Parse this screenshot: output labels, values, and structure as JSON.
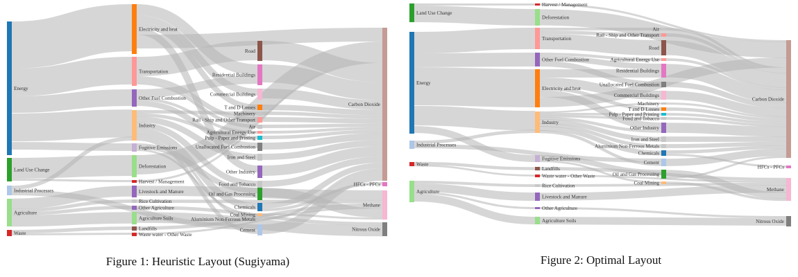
{
  "captions": {
    "left": "Figure 1: Heuristic Layout (Sugiyama)",
    "right": "Figure 2: Optimal Layout"
  },
  "colors": {
    "link": "#b4b4b4",
    "blue": "#1f77b4",
    "green": "#2ca02c",
    "lightblue": "#aec7e8",
    "lightgreen": "#98df8a",
    "red": "#d62728",
    "orange": "#ff7f0e",
    "pink": "#ff9896",
    "purple": "#9467bd",
    "peach": "#ffbb78",
    "lavender": "#c5b0d5",
    "brown": "#8c564b",
    "lightpink": "#f7b6d2",
    "magenta": "#e377c2",
    "gray": "#7f7f7f",
    "lightgray": "#c7c7c7",
    "teal": "#17becf",
    "rosybrown": "#c49c94"
  },
  "left": {
    "nodes": [
      {
        "label": "Energy"
      },
      {
        "label": "Land Use Change"
      },
      {
        "label": "Industrial Processes"
      },
      {
        "label": "Agriculture"
      },
      {
        "label": "Waste"
      },
      {
        "label": "Electricity and heat"
      },
      {
        "label": "Transportation"
      },
      {
        "label": "Other Fuel Combustion"
      },
      {
        "label": "Industry"
      },
      {
        "label": "Fugitive Emissions"
      },
      {
        "label": "Deforestation"
      },
      {
        "label": "Harvest / Management"
      },
      {
        "label": "Livestock and Manure"
      },
      {
        "label": "Rice Cultivation"
      },
      {
        "label": "Other Agriculture"
      },
      {
        "label": "Agriculture Soils"
      },
      {
        "label": "Landfills"
      },
      {
        "label": "Waste water - Other Waste"
      },
      {
        "label": "Road"
      },
      {
        "label": "Residential Buildings"
      },
      {
        "label": "Commercial Buildings"
      },
      {
        "label": "T and D Losses"
      },
      {
        "label": "Machinery"
      },
      {
        "label": "Rail - Ship and Other Transport"
      },
      {
        "label": "Air"
      },
      {
        "label": "Agricultural Energy Use"
      },
      {
        "label": "Pulp - Paper and Printing"
      },
      {
        "label": "Unallocated Fuel Combustion"
      },
      {
        "label": "Iron and Steel"
      },
      {
        "label": "Other Industry"
      },
      {
        "label": "Food and Tobacco"
      },
      {
        "label": "Oil and Gas Processing"
      },
      {
        "label": "Chemicals"
      },
      {
        "label": "Coal Mining"
      },
      {
        "label": "Aluminium Non-Ferrous Metals"
      },
      {
        "label": "Cement"
      },
      {
        "label": "Carbon Dioxide"
      },
      {
        "label": "HFCs - PFCs"
      },
      {
        "label": "Methane"
      },
      {
        "label": "Nitrous Oxide"
      }
    ]
  },
  "right": {
    "nodes": [
      {
        "label": "Land Use Change"
      },
      {
        "label": "Energy"
      },
      {
        "label": "Industrial Processes"
      },
      {
        "label": "Waste"
      },
      {
        "label": "Agriculture"
      },
      {
        "label": "Harvest / Management"
      },
      {
        "label": "Deforestation"
      },
      {
        "label": "Transportation"
      },
      {
        "label": "Other Fuel Combustion"
      },
      {
        "label": "Electricity and heat"
      },
      {
        "label": "Industry"
      },
      {
        "label": "Fugitive Emissions"
      },
      {
        "label": "Landfills"
      },
      {
        "label": "Waste water - Other Waste"
      },
      {
        "label": "Rice Cultivation"
      },
      {
        "label": "Livestock and Manure"
      },
      {
        "label": "Other Agriculture"
      },
      {
        "label": "Agriculture Soils"
      },
      {
        "label": "Air"
      },
      {
        "label": "Rail - Ship and Other Transport"
      },
      {
        "label": "Road"
      },
      {
        "label": "Agricultural Energy Use"
      },
      {
        "label": "Residential Buildings"
      },
      {
        "label": "Unallocated Fuel Combustion"
      },
      {
        "label": "Commercial Buildings"
      },
      {
        "label": "Machinery"
      },
      {
        "label": "T and D Losses"
      },
      {
        "label": "Pulp - Paper and Printing"
      },
      {
        "label": "Food and Tobacco"
      },
      {
        "label": "Other Industry"
      },
      {
        "label": "Iron and Steel"
      },
      {
        "label": "Aluminium Non-Ferrous Metals"
      },
      {
        "label": "Chemicals"
      },
      {
        "label": "Cement"
      },
      {
        "label": "Oil and Gas Processing"
      },
      {
        "label": "Coal Mining"
      },
      {
        "label": "Carbon Dioxide"
      },
      {
        "label": "HFCs - PFCs"
      },
      {
        "label": "Methane"
      },
      {
        "label": "Nitrous Oxide"
      }
    ]
  }
}
